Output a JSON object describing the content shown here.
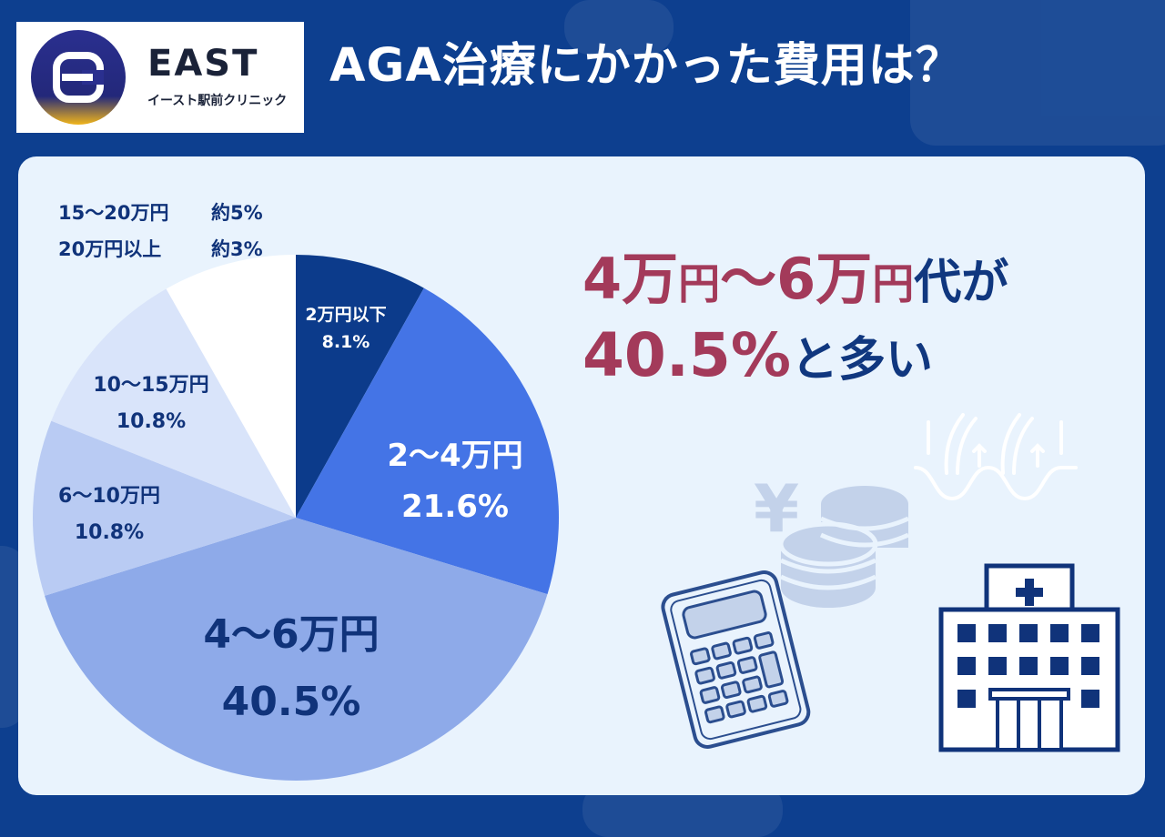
{
  "header": {
    "title": "AGA治療にかかった費用は？"
  },
  "logo": {
    "name": "EAST",
    "subtitle": "イースト駅前クリニック"
  },
  "headline": {
    "line1_a": "4万",
    "line1_b": "円",
    "line1_c": "〜6万",
    "line1_d": "円",
    "line1_e": "代が",
    "line2_a": "40.5%",
    "line2_b": "と多い"
  },
  "small_legend": [
    {
      "category": "15〜20万円",
      "value_label": "約5%"
    },
    {
      "category": "20万円以上",
      "value_label": "約3%"
    }
  ],
  "chart_data": {
    "type": "pie",
    "title": "AGA治療にかかった費用は？",
    "slices": [
      {
        "label": "2万円以下",
        "value": 8.1,
        "value_label": "8.1%",
        "color": "#0c3b8b"
      },
      {
        "label": "2〜4万円",
        "value": 21.6,
        "value_label": "21.6%",
        "color": "#4474e6"
      },
      {
        "label": "4〜6万円",
        "value": 40.5,
        "value_label": "40.5%",
        "color": "#8eaae9"
      },
      {
        "label": "6〜10万円",
        "value": 10.8,
        "value_label": "10.8%",
        "color": "#b9cbf3"
      },
      {
        "label": "10〜15万円",
        "value": 10.8,
        "value_label": "10.8%",
        "color": "#d9e4fa"
      },
      {
        "label": "15〜20万円 / 20万円以上",
        "value": 8.2,
        "value_label": "",
        "color": "#ffffff"
      }
    ]
  },
  "colors": {
    "background": "#0d3f8f",
    "panel": "#e9f3fd",
    "highlight_red": "#a33a5a",
    "highlight_blue": "#10377f"
  },
  "icons": [
    "yen-coins-icon",
    "calculator-icon",
    "hair-growth-icon",
    "hospital-icon"
  ]
}
